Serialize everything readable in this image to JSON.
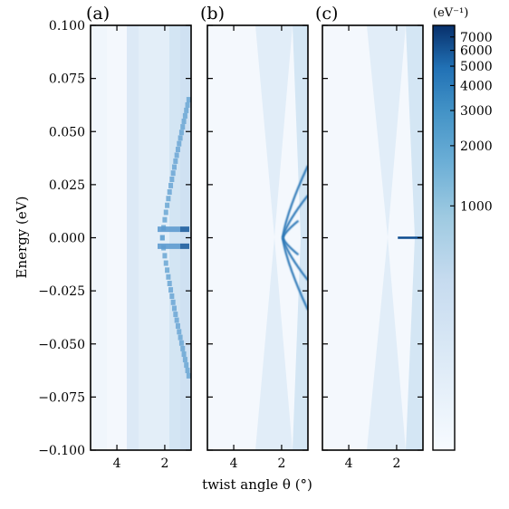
{
  "chart_data": {
    "type": "heatmap",
    "xlabel": "twist angle θ (°)",
    "ylabel": "Energy (eV)",
    "ylim": [
      -0.1,
      0.1
    ],
    "xlim": [
      5.1,
      0.9
    ],
    "x_tick_values": [
      4,
      2
    ],
    "x_tick_labels": [
      "4",
      "2"
    ],
    "y_tick_values": [
      0.1,
      0.075,
      0.05,
      0.025,
      0.0,
      -0.025,
      -0.05,
      -0.075,
      -0.1
    ],
    "y_tick_labels": [
      "0.100",
      "0.075",
      "0.050",
      "0.025",
      "0.000",
      "−0.025",
      "−0.050",
      "−0.075",
      "−0.100"
    ],
    "colormap": "Blues",
    "colorbar": {
      "unit_label": "(eV⁻¹)",
      "scale": "log",
      "range": [
        60,
        8000
      ],
      "tick_values": [
        7000,
        6000,
        5000,
        4000,
        3000,
        2000,
        1000
      ],
      "tick_labels": [
        "7000",
        "6000",
        "5000",
        "4000",
        "3000",
        "2000",
        "1000"
      ]
    },
    "panels": [
      {
        "label": "(a)",
        "description_mode": "pixelated",
        "features": [
          {
            "kind": "branch_pair",
            "theta_start": 2.1,
            "theta_end": 1.0,
            "energy_at_end": 0.065
          },
          {
            "kind": "flat_band",
            "energy": 0.004,
            "theta_range": [
              1.0,
              2.3
            ]
          },
          {
            "kind": "flat_band",
            "energy": -0.004,
            "theta_range": [
              1.0,
              2.3
            ]
          }
        ]
      },
      {
        "label": "(b)",
        "description_mode": "smooth",
        "features": [
          {
            "kind": "branch_pair",
            "theta_start": 1.95,
            "theta_end": 0.9,
            "energy_at_end": 0.034
          },
          {
            "kind": "branch_pair",
            "theta_start": 1.95,
            "theta_end": 0.9,
            "energy_at_end": 0.02
          },
          {
            "kind": "branch_pair",
            "theta_start": 1.95,
            "theta_end": 1.3,
            "energy_at_end": 0.008
          }
        ]
      },
      {
        "label": "(c)",
        "description_mode": "smooth",
        "features": [
          {
            "kind": "flat_band",
            "energy": 0.0,
            "theta_range": [
              0.9,
              1.95
            ]
          }
        ]
      }
    ]
  }
}
